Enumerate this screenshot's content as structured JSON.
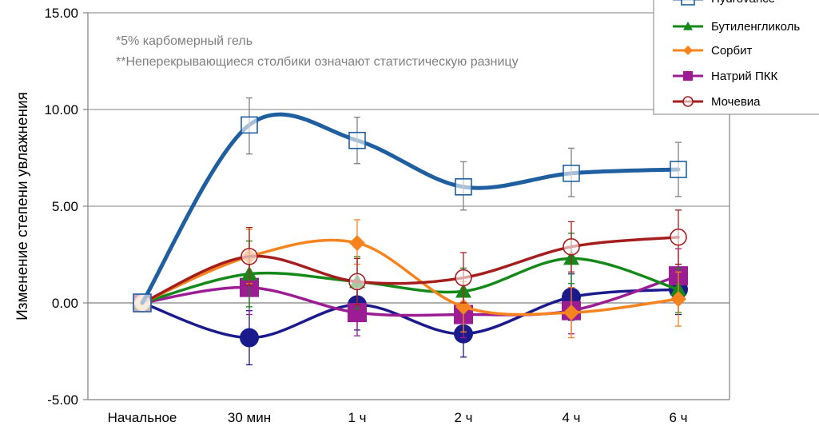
{
  "chart_data": {
    "type": "line",
    "title": "",
    "xlabel": "",
    "ylabel": "Изменение степени увлажнения",
    "categories": [
      "Начальное",
      "30 мин",
      "1 ч",
      "2 ч",
      "4 ч",
      "6 ч"
    ],
    "ylim": [
      -5,
      15
    ],
    "yticks": [
      "15.00",
      "10.00",
      "5.00",
      "0.00",
      "-5.00"
    ],
    "ytick_values": [
      15,
      10,
      5,
      0,
      -5
    ],
    "grid": "horizontal",
    "legend_position": "top-right",
    "notes": [
      "*5% карбомерный гель",
      "**Неперекрывающиеся столбики означают статистическую разницу"
    ],
    "series": [
      {
        "name": "Hydrovance",
        "color": "#1f5fa0",
        "marker": "square-open",
        "values": [
          0,
          9.2,
          8.4,
          6.0,
          6.7,
          6.9
        ],
        "err_low": [
          null,
          7.7,
          7.2,
          4.8,
          5.5,
          5.5
        ],
        "err_high": [
          null,
          10.6,
          9.6,
          7.3,
          8.0,
          8.3
        ]
      },
      {
        "name": "Бутиленгликоль",
        "color": "#14891a",
        "marker": "triangle",
        "values": [
          0,
          1.5,
          1.1,
          0.6,
          2.3,
          0.7
        ],
        "err_low": [
          null,
          -0.2,
          -0.3,
          -0.5,
          1.0,
          -0.5
        ],
        "err_high": [
          null,
          3.2,
          2.4,
          1.8,
          3.6,
          1.8
        ]
      },
      {
        "name": "Сорбит",
        "color": "#f5841f",
        "marker": "diamond",
        "values": [
          0,
          2.4,
          3.1,
          -0.2,
          -0.5,
          0.2
        ],
        "err_low": [
          null,
          1.0,
          2.0,
          -1.5,
          -1.8,
          -1.2
        ],
        "err_high": [
          null,
          3.8,
          4.3,
          1.1,
          0.8,
          1.6
        ]
      },
      {
        "name": "Натрий ПКК",
        "color": "#9b1c93",
        "marker": "square",
        "values": [
          0,
          0.8,
          -0.5,
          -0.6,
          -0.4,
          1.4
        ],
        "err_low": [
          null,
          -0.6,
          -1.7,
          -1.8,
          -1.6,
          0.0
        ],
        "err_high": [
          null,
          2.2,
          0.7,
          0.6,
          0.8,
          2.8
        ]
      },
      {
        "name": "Мочевиа",
        "color": "#a51e1e",
        "marker": "circle-open",
        "values": [
          0,
          2.4,
          1.1,
          1.3,
          2.9,
          3.4
        ],
        "err_low": [
          null,
          0.9,
          -0.1,
          0.0,
          1.6,
          2.0
        ],
        "err_high": [
          null,
          3.9,
          2.3,
          2.6,
          4.2,
          4.8
        ]
      },
      {
        "name": "",
        "color": "#1a1a8c",
        "marker": "circle",
        "values": [
          0,
          -1.8,
          -0.1,
          -1.6,
          0.3,
          0.7
        ],
        "err_low": [
          null,
          -3.2,
          -1.4,
          -2.8,
          -0.9,
          -0.6
        ],
        "err_high": [
          null,
          -0.4,
          1.2,
          -0.4,
          1.5,
          2.0
        ]
      }
    ],
    "legend": [
      "Hydrovance",
      "Бутиленгликоль",
      "Сорбит",
      "Натрий ПКК",
      "Мочевиа"
    ]
  }
}
